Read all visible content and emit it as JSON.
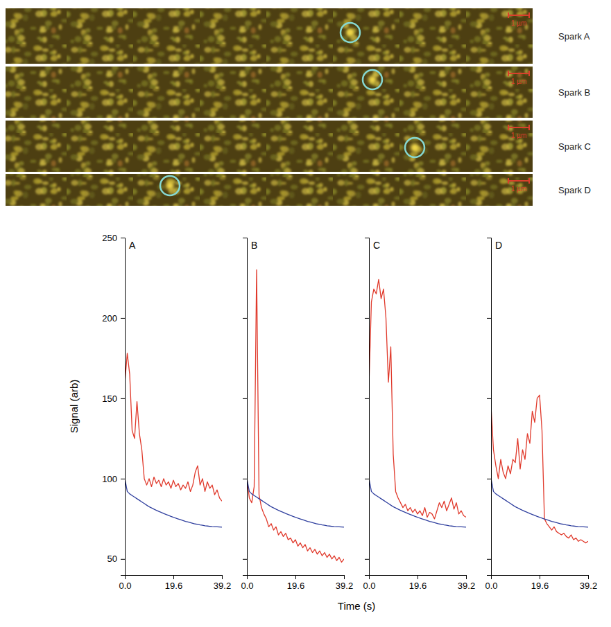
{
  "images": [
    {
      "label": "Spark A",
      "scale_bar": "1 µm"
    },
    {
      "label": "Spark B",
      "scale_bar": "1 µm"
    },
    {
      "label": "Spark C",
      "scale_bar": "1 µm"
    },
    {
      "label": "Spark D",
      "scale_bar": "1 µm"
    }
  ],
  "shared_axes": {
    "x_label": "Time (s)",
    "y_label": "Signal (arb)"
  },
  "chart_data": [
    {
      "type": "line",
      "title": "A",
      "x": [
        0,
        0.98,
        1.96,
        2.94,
        3.92,
        4.9,
        5.88,
        6.86,
        7.84,
        8.82,
        9.8,
        10.78,
        11.76,
        12.74,
        13.72,
        14.7,
        15.68,
        16.66,
        17.64,
        18.62,
        19.6,
        20.58,
        21.56,
        22.54,
        23.52,
        24.5,
        25.48,
        26.46,
        27.44,
        28.42,
        29.4,
        30.38,
        31.36,
        32.34,
        33.32,
        34.3,
        35.28,
        36.26,
        37.24,
        38.22,
        39.2
      ],
      "series": [
        {
          "color": "#e0392b",
          "values": [
            160,
            178,
            165,
            130,
            125,
            148,
            128,
            118,
            100,
            96,
            100,
            95,
            101,
            97,
            99,
            95,
            100,
            96,
            98,
            94,
            99,
            95,
            97,
            93,
            96,
            94,
            98,
            92,
            96,
            104,
            108,
            96,
            100,
            92,
            98,
            94,
            96,
            90,
            93,
            88,
            86
          ]
        },
        {
          "color": "#2f3f9e",
          "values": [
            100,
            92,
            90.5,
            89.5,
            88.5,
            87.5,
            86.5,
            85.5,
            84.5,
            83.5,
            82.5,
            81.8,
            81,
            80.3,
            79.6,
            79,
            78.3,
            77.7,
            77.1,
            76.5,
            76,
            75.4,
            74.9,
            74.4,
            73.9,
            73.4,
            73,
            72.6,
            72.2,
            71.8,
            71.5,
            71.2,
            71,
            70.7,
            70.5,
            70.3,
            70.1,
            70,
            70,
            69.9,
            69.8
          ]
        }
      ],
      "xlim": [
        0,
        39.2
      ],
      "xticks": [
        {
          "value": 0,
          "label": "0.0"
        },
        19.6,
        39.2
      ],
      "ylim": [
        40,
        250
      ],
      "yticks": [
        50,
        100,
        150,
        200,
        250
      ]
    },
    {
      "type": "line",
      "title": "B",
      "x": [
        0,
        0.98,
        1.96,
        2.94,
        3.92,
        4.9,
        5.88,
        6.86,
        7.84,
        8.82,
        9.8,
        10.78,
        11.76,
        12.74,
        13.72,
        14.7,
        15.68,
        16.66,
        17.64,
        18.62,
        19.6,
        20.58,
        21.56,
        22.54,
        23.52,
        24.5,
        25.48,
        26.46,
        27.44,
        28.42,
        29.4,
        30.38,
        31.36,
        32.34,
        33.32,
        34.3,
        35.28,
        36.26,
        37.24,
        38.22,
        39.2
      ],
      "series": [
        {
          "color": "#e0392b",
          "values": [
            100,
            88,
            85,
            95,
            230,
            90,
            82,
            78,
            75,
            70,
            72,
            68,
            70,
            65,
            67,
            64,
            66,
            62,
            63,
            60,
            62,
            58,
            60,
            57,
            59,
            55,
            57,
            54,
            56,
            53,
            55,
            52,
            54,
            51,
            53,
            50,
            52,
            49,
            51,
            48,
            50
          ]
        },
        {
          "color": "#2f3f9e",
          "values": [
            100,
            92,
            90.5,
            89.5,
            88.5,
            87.5,
            86.5,
            85.5,
            84.5,
            83.5,
            82.5,
            81.8,
            81,
            80.3,
            79.6,
            79,
            78.3,
            77.7,
            77.1,
            76.5,
            76,
            75.4,
            74.9,
            74.4,
            73.9,
            73.4,
            73,
            72.6,
            72.2,
            71.8,
            71.5,
            71.2,
            71,
            70.7,
            70.5,
            70.3,
            70.1,
            70,
            70,
            69.9,
            69.8
          ]
        }
      ],
      "xlim": [
        0,
        39.2
      ],
      "xticks": [
        {
          "value": 0,
          "label": "0.0"
        },
        19.6,
        39.2
      ],
      "ylim": [
        40,
        250
      ],
      "yticks": [
        50,
        100,
        150,
        200,
        250
      ],
      "tick_labels": "x"
    },
    {
      "type": "line",
      "title": "C",
      "x": [
        0,
        0.98,
        1.96,
        2.94,
        3.92,
        4.9,
        5.88,
        6.86,
        7.84,
        8.82,
        9.8,
        10.78,
        11.76,
        12.74,
        13.72,
        14.7,
        15.68,
        16.66,
        17.64,
        18.62,
        19.6,
        20.58,
        21.56,
        22.54,
        23.52,
        24.5,
        25.48,
        26.46,
        27.44,
        28.42,
        29.4,
        30.38,
        31.36,
        32.34,
        33.32,
        34.3,
        35.28,
        36.26,
        37.24,
        38.22,
        39.2
      ],
      "series": [
        {
          "color": "#e0392b",
          "values": [
            158,
            210,
            218,
            215,
            224,
            212,
            218,
            200,
            160,
            182,
            115,
            92,
            88,
            85,
            82,
            84,
            80,
            82,
            79,
            81,
            78,
            80,
            77,
            82,
            76,
            79,
            78,
            75,
            80,
            85,
            82,
            86,
            80,
            84,
            88,
            81,
            85,
            78,
            80,
            77,
            76
          ]
        },
        {
          "color": "#2f3f9e",
          "values": [
            100,
            92,
            90.5,
            89.5,
            88.5,
            87.5,
            86.5,
            85.5,
            84.5,
            83.5,
            82.5,
            81.8,
            81,
            80.3,
            79.6,
            79,
            78.3,
            77.7,
            77.1,
            76.5,
            76,
            75.4,
            74.9,
            74.4,
            73.9,
            73.4,
            73,
            72.6,
            72.2,
            71.8,
            71.5,
            71.2,
            71,
            70.7,
            70.5,
            70.3,
            70.1,
            70,
            70,
            69.9,
            69.8
          ]
        }
      ],
      "xlim": [
        0,
        39.2
      ],
      "xticks": [
        {
          "value": 0,
          "label": "0.0"
        },
        19.6,
        39.2
      ],
      "ylim": [
        40,
        250
      ],
      "yticks": [
        50,
        100,
        150,
        200,
        250
      ],
      "tick_labels": "x"
    },
    {
      "type": "line",
      "title": "D",
      "x": [
        0,
        0.98,
        1.96,
        2.94,
        3.92,
        4.9,
        5.88,
        6.86,
        7.84,
        8.82,
        9.8,
        10.78,
        11.76,
        12.74,
        13.72,
        14.7,
        15.68,
        16.66,
        17.64,
        18.62,
        19.6,
        20.58,
        21.56,
        22.54,
        23.52,
        24.5,
        25.48,
        26.46,
        27.44,
        28.42,
        29.4,
        30.38,
        31.36,
        32.34,
        33.32,
        34.3,
        35.28,
        36.26,
        37.24,
        38.22,
        39.2
      ],
      "series": [
        {
          "color": "#e0392b",
          "values": [
            145,
            118,
            108,
            100,
            112,
            104,
            100,
            108,
            103,
            112,
            110,
            125,
            106,
            118,
            112,
            128,
            122,
            142,
            135,
            150,
            152,
            130,
            75,
            72,
            70,
            68,
            70,
            67,
            66,
            65,
            66,
            64,
            63,
            65,
            62,
            63,
            61,
            62,
            61,
            60,
            61
          ]
        },
        {
          "color": "#2f3f9e",
          "values": [
            100,
            92,
            90.5,
            89.5,
            88.5,
            87.5,
            86.5,
            85.5,
            84.5,
            83.5,
            82.5,
            81.8,
            81,
            80.3,
            79.6,
            79,
            78.3,
            77.7,
            77.1,
            76.5,
            76,
            75.4,
            74.9,
            74.4,
            73.9,
            73.4,
            73,
            72.6,
            72.2,
            71.8,
            71.5,
            71.2,
            71,
            70.7,
            70.5,
            70.3,
            70.1,
            70,
            70,
            69.9,
            69.8
          ]
        }
      ],
      "xlim": [
        0,
        39.2
      ],
      "xticks": [
        {
          "value": 0,
          "label": "0.0"
        },
        19.6,
        39.2
      ],
      "ylim": [
        40,
        250
      ],
      "yticks": [
        50,
        100,
        150,
        200,
        250
      ],
      "tick_labels": "x"
    }
  ]
}
